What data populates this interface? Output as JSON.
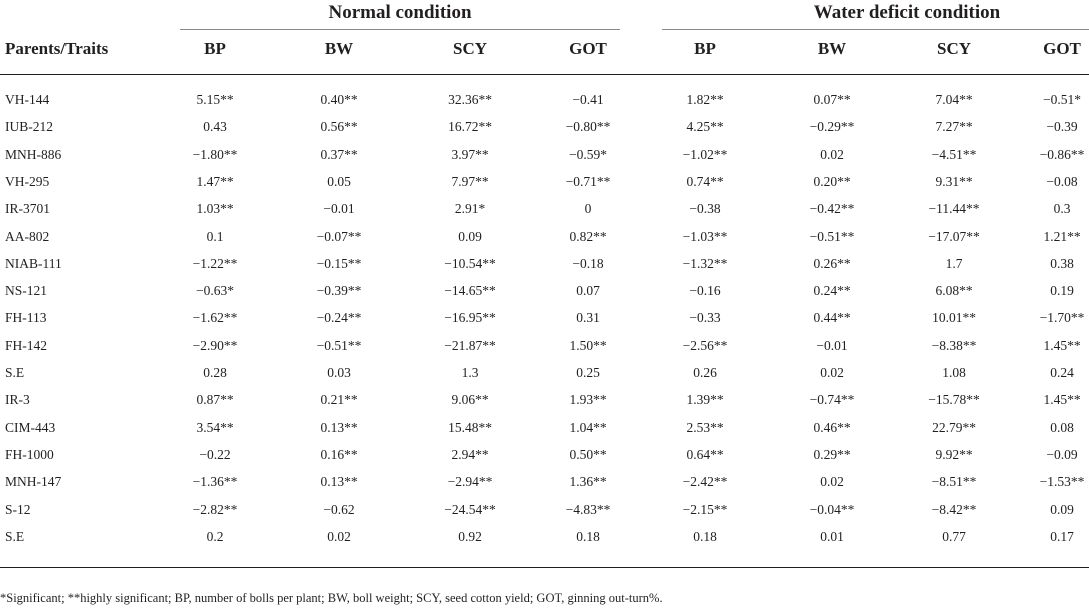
{
  "group_headers": {
    "normal": "Normal condition",
    "water_deficit": "Water deficit condition"
  },
  "row_header_label": "Parents/Traits",
  "columns": [
    "BP",
    "BW",
    "SCY",
    "GOT",
    "BP",
    "BW",
    "SCY",
    "GOT"
  ],
  "rows": [
    {
      "name": "VH-144",
      "cells": [
        "5.15**",
        "0.40**",
        "32.36**",
        "−0.41",
        "1.82**",
        "0.07**",
        "7.04**",
        "−0.51*"
      ]
    },
    {
      "name": "IUB-212",
      "cells": [
        "0.43",
        "0.56**",
        "16.72**",
        "−0.80**",
        "4.25**",
        "−0.29**",
        "7.27**",
        "−0.39"
      ]
    },
    {
      "name": "MNH-886",
      "cells": [
        "−1.80**",
        "0.37**",
        "3.97**",
        "−0.59*",
        "−1.02**",
        "0.02",
        "−4.51**",
        "−0.86**"
      ]
    },
    {
      "name": "VH-295",
      "cells": [
        "1.47**",
        "0.05",
        "7.97**",
        "−0.71**",
        "0.74**",
        "0.20**",
        "9.31**",
        "−0.08"
      ]
    },
    {
      "name": "IR-3701",
      "cells": [
        "1.03**",
        "−0.01",
        "2.91*",
        "0",
        "−0.38",
        "−0.42**",
        "−11.44**",
        "0.3"
      ]
    },
    {
      "name": "AA-802",
      "cells": [
        "0.1",
        "−0.07**",
        "0.09",
        "0.82**",
        "−1.03**",
        "−0.51**",
        "−17.07**",
        "1.21**"
      ]
    },
    {
      "name": "NIAB-111",
      "cells": [
        "−1.22**",
        "−0.15**",
        "−10.54**",
        "−0.18",
        "−1.32**",
        "0.26**",
        "1.7",
        "0.38"
      ]
    },
    {
      "name": "NS-121",
      "cells": [
        "−0.63*",
        "−0.39**",
        "−14.65**",
        "0.07",
        "−0.16",
        "0.24**",
        "6.08**",
        "0.19"
      ]
    },
    {
      "name": "FH-113",
      "cells": [
        "−1.62**",
        "−0.24**",
        "−16.95**",
        "0.31",
        "−0.33",
        "0.44**",
        "10.01**",
        "−1.70**"
      ]
    },
    {
      "name": "FH-142",
      "cells": [
        "−2.90**",
        "−0.51**",
        "−21.87**",
        "1.50**",
        "−2.56**",
        "−0.01",
        "−8.38**",
        "1.45**"
      ]
    },
    {
      "name": "S.E",
      "cells": [
        "0.28",
        "0.03",
        "1.3",
        "0.25",
        "0.26",
        "0.02",
        "1.08",
        "0.24"
      ]
    },
    {
      "name": "IR-3",
      "cells": [
        "0.87**",
        "0.21**",
        "9.06**",
        "1.93**",
        "1.39**",
        "−0.74**",
        "−15.78**",
        "1.45**"
      ]
    },
    {
      "name": "CIM-443",
      "cells": [
        "3.54**",
        "0.13**",
        "15.48**",
        "1.04**",
        "2.53**",
        "0.46**",
        "22.79**",
        "0.08"
      ]
    },
    {
      "name": "FH-1000",
      "cells": [
        "−0.22",
        "0.16**",
        "2.94**",
        "0.50**",
        "0.64**",
        "0.29**",
        "9.92**",
        "−0.09"
      ]
    },
    {
      "name": "MNH-147",
      "cells": [
        "−1.36**",
        "0.13**",
        "−2.94**",
        "1.36**",
        "−2.42**",
        "0.02",
        "−8.51**",
        "−1.53**"
      ]
    },
    {
      "name": "S-12",
      "cells": [
        "−2.82**",
        "−0.62",
        "−24.54**",
        "−4.83**",
        "−2.15**",
        "−0.04**",
        "−8.42**",
        "0.09"
      ]
    },
    {
      "name": "S.E",
      "cells": [
        "0.2",
        "0.02",
        "0.92",
        "0.18",
        "0.18",
        "0.01",
        "0.77",
        "0.17"
      ]
    }
  ],
  "footnote": "*Significant; **highly significant; BP, number of bolls per plant; BW, boll weight; SCY, seed cotton yield; GOT, ginning out-turn%."
}
